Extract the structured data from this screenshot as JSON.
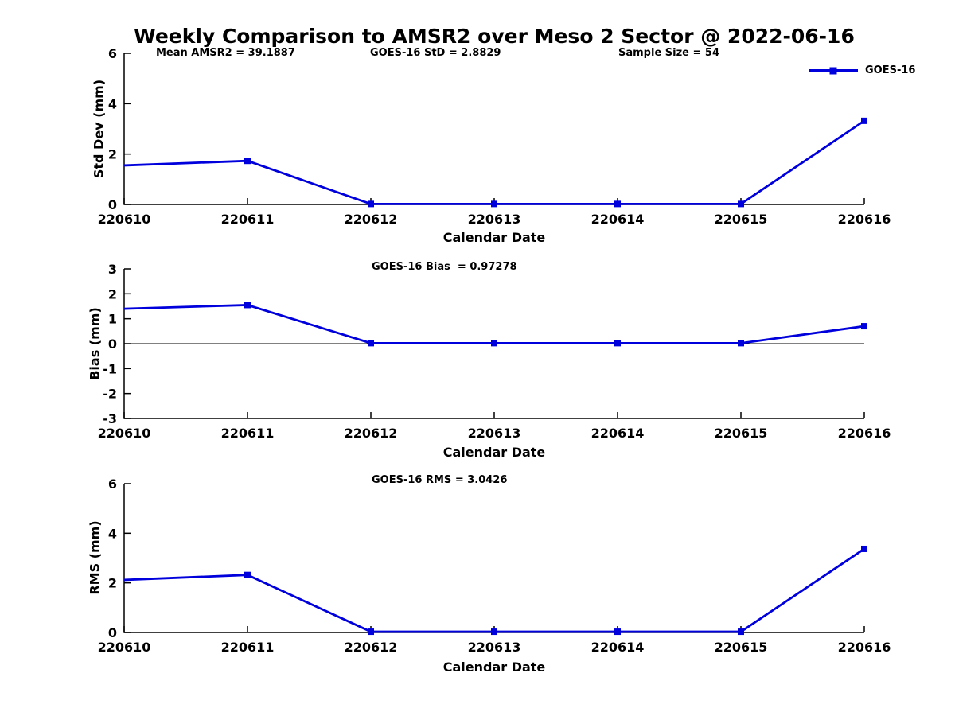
{
  "title": "Weekly Comparison to AMSR2 over Meso 2 Sector @ 2022-06-16",
  "legend": {
    "label": "GOES-16",
    "position": "top-right-outside-first-plot",
    "marker": "filled-square"
  },
  "colors": {
    "line": "#0000dd",
    "axis": "#000000",
    "text": "#000000",
    "background": "#ffffff"
  },
  "chart_data": [
    {
      "type": "line",
      "categories": [
        "220610",
        "220611",
        "220612",
        "220613",
        "220614",
        "220615",
        "220616"
      ],
      "series": [
        {
          "name": "GOES-16",
          "marker": "square",
          "values": [
            1.55,
            1.73,
            0.02,
            0.02,
            0.02,
            0.02,
            3.32
          ]
        }
      ],
      "annotations": [
        {
          "text": "Mean AMSR2 = 39.1887"
        },
        {
          "text": "GOES-16 StD = 2.8829"
        },
        {
          "text": "Sample Size = 54"
        }
      ],
      "xlabel": "Calendar Date",
      "ylabel": "Std Dev (mm)",
      "ylim": [
        0,
        6
      ],
      "yticks": [
        0,
        2,
        4,
        6
      ],
      "zero_line": false,
      "grid": false
    },
    {
      "type": "line",
      "categories": [
        "220610",
        "220611",
        "220612",
        "220613",
        "220614",
        "220615",
        "220616"
      ],
      "series": [
        {
          "name": "GOES-16",
          "marker": "square",
          "values": [
            1.4,
            1.55,
            0.02,
            0.02,
            0.02,
            0.02,
            0.7
          ]
        }
      ],
      "annotations": [
        {
          "text": "GOES-16 Bias  = 0.97278"
        }
      ],
      "xlabel": "Calendar Date",
      "ylabel": "Bias (mm)",
      "ylim": [
        -3,
        3
      ],
      "yticks": [
        -3,
        -2,
        -1,
        0,
        1,
        2,
        3
      ],
      "zero_line": true,
      "grid": false
    },
    {
      "type": "line",
      "categories": [
        "220610",
        "220611",
        "220612",
        "220613",
        "220614",
        "220615",
        "220616"
      ],
      "series": [
        {
          "name": "GOES-16",
          "marker": "square",
          "values": [
            2.12,
            2.32,
            0.03,
            0.03,
            0.03,
            0.03,
            3.37
          ]
        }
      ],
      "annotations": [
        {
          "text": "GOES-16 RMS = 3.0426"
        }
      ],
      "xlabel": "Calendar Date",
      "ylabel": "RMS (mm)",
      "ylim": [
        0,
        6
      ],
      "yticks": [
        0,
        2,
        4,
        6
      ],
      "zero_line": false,
      "grid": false
    }
  ]
}
